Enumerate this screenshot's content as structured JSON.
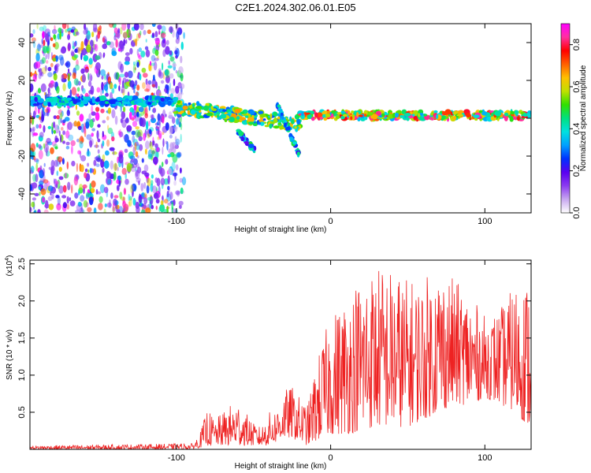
{
  "title": "C2E1.2024.302.06.01.E05",
  "chart_data": [
    {
      "type": "heatmap",
      "xlabel": "Height of straight line (km)",
      "ylabel": "Frequency (Hz)",
      "xlim": [
        -195,
        130
      ],
      "ylim": [
        -50,
        50
      ],
      "xticks": [
        -100,
        0,
        100
      ],
      "xtick_labels": [
        "-100",
        "0",
        "100"
      ],
      "yticks": [
        -40,
        -20,
        0,
        20,
        40
      ],
      "ytick_labels": [
        "-40",
        "-20",
        "0",
        "20",
        "40"
      ],
      "colorbar": {
        "label": "Normalized spectral amplitude",
        "range": [
          0.0,
          0.9
        ],
        "ticks": [
          0.0,
          0.2,
          0.4,
          0.6,
          0.8
        ],
        "tick_labels": [
          "0.0",
          "0.2",
          "0.4",
          "0.6",
          "0.8"
        ],
        "colormap": [
          "#ffffff",
          "#c8a8f0",
          "#8c3cf0",
          "#5a00f0",
          "#0030ff",
          "#00a0ff",
          "#00e0e0",
          "#00e080",
          "#30e000",
          "#c0e000",
          "#ffc000",
          "#ff6000",
          "#ff0000",
          "#ff30a0",
          "#ff00ff"
        ]
      },
      "features": {
        "noise_region_x": [
          -195,
          -95
        ],
        "line_segments": [
          {
            "x": [
              -195,
              -100
            ],
            "freq": 9
          },
          {
            "x": [
              -100,
              -20
            ],
            "freq": [
              6,
              -3
            ]
          },
          {
            "x": [
              -20,
              130
            ],
            "freq": 1.5
          }
        ],
        "branches": [
          {
            "x": [
              -60,
              -48
            ],
            "freq": [
              -7,
              -18
            ]
          },
          {
            "x": [
              -35,
              -20
            ],
            "freq": [
              8,
              -20
            ]
          }
        ]
      }
    },
    {
      "type": "line",
      "xlabel": "Height of straight line (km)",
      "ylabel": "SNR (10 * v/v)",
      "y_multiplier": "(x10",
      "y_multiplier_exp": "4",
      "y_multiplier_close": ")",
      "xlim": [
        -195,
        130
      ],
      "ylim": [
        0,
        2.55
      ],
      "xticks": [
        -100,
        0,
        100
      ],
      "xtick_labels": [
        "-100",
        "0",
        "100"
      ],
      "yticks": [
        0.5,
        1.0,
        1.5,
        2.0,
        2.5
      ],
      "ytick_labels": [
        "0.5",
        "1.0",
        "1.5",
        "2.0",
        "2.5"
      ],
      "series": [
        {
          "color": "#ee2222",
          "envelope_x": [
            -195,
            -90,
            -85,
            -80,
            -75,
            -70,
            -65,
            -60,
            -55,
            -50,
            -45,
            -40,
            -35,
            -30,
            -25,
            -20,
            -15,
            -10,
            -5,
            0,
            10,
            20,
            30,
            40,
            50,
            60,
            70,
            80,
            90,
            100,
            110,
            120,
            128
          ],
          "envelope_max": [
            0.05,
            0.08,
            0.2,
            0.55,
            0.4,
            0.5,
            0.6,
            0.65,
            0.5,
            0.35,
            0.3,
            0.5,
            0.55,
            0.8,
            0.85,
            0.7,
            0.6,
            1.1,
            1.5,
            1.8,
            2.1,
            2.4,
            2.5,
            2.45,
            2.3,
            2.3,
            2.5,
            2.3,
            2.1,
            1.8,
            1.9,
            2.25,
            2.3
          ],
          "envelope_min": [
            0.0,
            0.0,
            0.02,
            0.05,
            0.05,
            0.05,
            0.05,
            0.05,
            0.05,
            0.05,
            0.05,
            0.05,
            0.1,
            0.15,
            0.15,
            0.1,
            0.05,
            0.1,
            0.15,
            0.2,
            0.2,
            0.25,
            0.3,
            0.3,
            0.3,
            0.4,
            0.5,
            0.6,
            0.6,
            0.7,
            0.6,
            0.5,
            0.3
          ]
        }
      ]
    }
  ]
}
